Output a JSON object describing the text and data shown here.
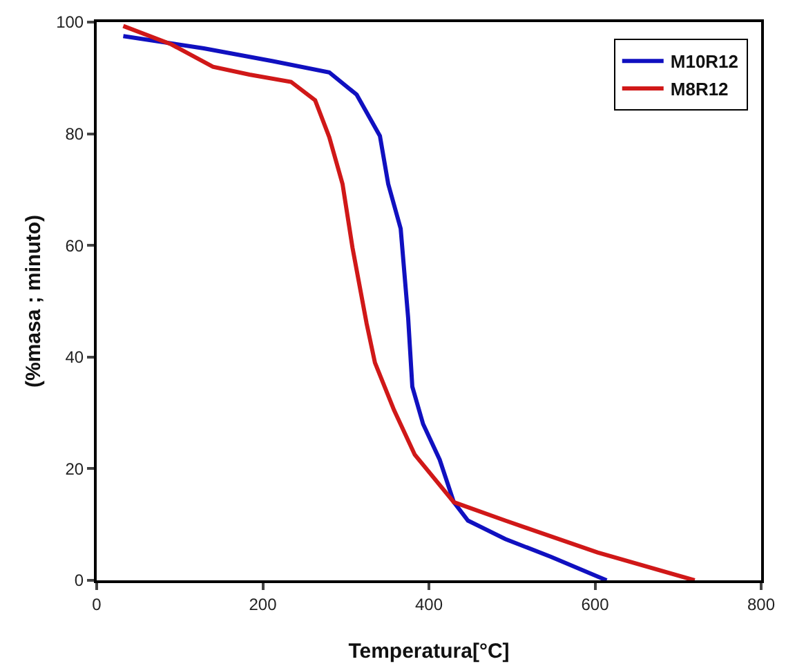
{
  "chart_data": {
    "type": "line",
    "xlabel": "Temperatura[°C]",
    "ylabel": "(%masa ; minuto)",
    "xlim": [
      0,
      800
    ],
    "xticks": [
      0,
      200,
      400,
      600,
      800
    ],
    "ylim": [
      0,
      100
    ],
    "yticks": [
      0,
      20,
      40,
      60,
      80,
      100
    ],
    "grid": false,
    "legend": "top right",
    "line_style": "solid",
    "marker": "none",
    "series": [
      {
        "name": "M10R12",
        "color": "#1010c0",
        "x": [
          32,
          129,
          212,
          280,
          313,
          341,
          351,
          366,
          375,
          380,
          393,
          413,
          430,
          447,
          492,
          547,
          614
        ],
        "values": [
          97.5,
          95.3,
          93,
          91,
          87,
          79.6,
          71,
          63,
          47,
          34.7,
          28,
          21.6,
          14,
          10.7,
          7.4,
          4.2,
          0
        ]
      },
      {
        "name": "M8R12",
        "color": "#d01818",
        "x": [
          32,
          90,
          140,
          184,
          234,
          263,
          280,
          296,
          308,
          325,
          335,
          358,
          383,
          430,
          492,
          603,
          720
        ],
        "values": [
          99.3,
          96,
          92,
          90.6,
          89.3,
          86,
          79.4,
          71,
          59.6,
          46,
          39,
          30.5,
          22.5,
          14,
          10.7,
          5,
          0
        ]
      }
    ]
  }
}
